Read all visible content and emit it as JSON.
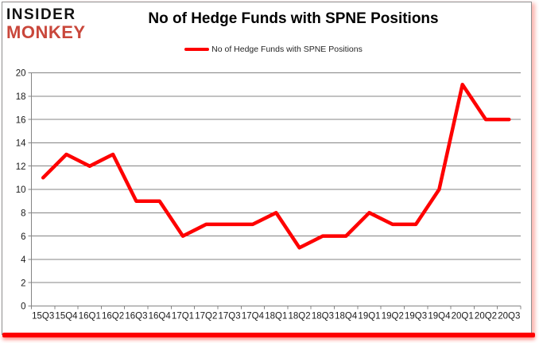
{
  "logo": {
    "line1": "INSIDER",
    "line2": "MONKEY",
    "insider_color": "#121212",
    "monkey_color": "#c9473b"
  },
  "header": {
    "title": "No of Hedge Funds with SPNE Positions"
  },
  "legend": {
    "label": "No of Hedge Funds with SPNE Positions",
    "marker_color": "#fe0000"
  },
  "chart_data": {
    "type": "line",
    "title": "No of Hedge Funds with SPNE Positions",
    "categories": [
      "15Q3",
      "15Q4",
      "16Q1",
      "16Q2",
      "16Q3",
      "16Q4",
      "17Q1",
      "17Q2",
      "17Q3",
      "17Q4",
      "18Q1",
      "18Q2",
      "18Q3",
      "18Q4",
      "19Q1",
      "19Q2",
      "19Q3",
      "19Q4",
      "20Q1",
      "20Q2",
      "20Q3"
    ],
    "series": [
      {
        "name": "No of Hedge Funds with SPNE Positions",
        "color": "#fe0000",
        "values": [
          11,
          13,
          12,
          13,
          9,
          9,
          6,
          7,
          7,
          7,
          8,
          5,
          6,
          6,
          8,
          7,
          7,
          10,
          19,
          16,
          16
        ]
      }
    ],
    "xlabel": "",
    "ylabel": "",
    "ylim": [
      0,
      20
    ],
    "ytick_step": 2,
    "grid": "horizontal",
    "legend_position": "top",
    "axis_color": "#848484",
    "text_color": "#1a1a1a"
  },
  "frame": {
    "border_color": "#8f8f8f",
    "underline_color": "#fe0000"
  }
}
